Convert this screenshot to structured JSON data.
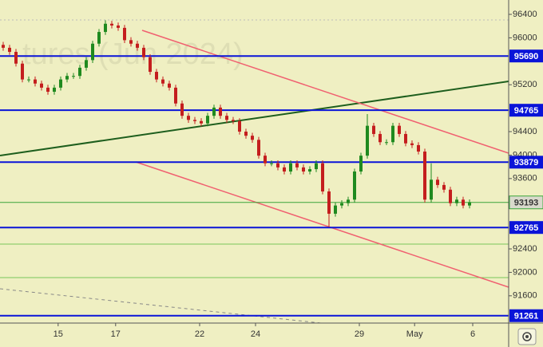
{
  "chart_data": {
    "type": "candlestick",
    "watermark": "tures (Jun 2024)",
    "open": [
      95880,
      95830,
      95760,
      95560,
      95290,
      95290,
      95220,
      95150,
      95080,
      95150,
      95290,
      95350,
      95350,
      95490,
      95620,
      95900,
      96100,
      96240,
      96210,
      96170,
      95960,
      95900,
      95830,
      95670,
      95420,
      95290,
      95220,
      95150,
      94880,
      94670,
      94600,
      94580,
      94540,
      94670,
      94810,
      94670,
      94600,
      94580,
      94400,
      94330,
      94260,
      93990,
      93860,
      93860,
      93790,
      93720,
      93860,
      93790,
      93720,
      93760,
      93860,
      93380,
      93000,
      93140,
      93180,
      93240,
      93720,
      93990,
      94500,
      94360,
      94220,
      94220,
      94500,
      94360,
      94200,
      94170,
      94060,
      93240,
      93580,
      93490,
      93410,
      93180,
      93240,
      93140
    ],
    "high": [
      95930,
      95880,
      95810,
      95610,
      95340,
      95340,
      95270,
      95200,
      95200,
      95340,
      95400,
      95400,
      95540,
      95670,
      95950,
      96150,
      96300,
      96290,
      96260,
      96220,
      96010,
      95950,
      95880,
      95720,
      95470,
      95340,
      95270,
      95200,
      94930,
      94720,
      94650,
      94630,
      94720,
      94860,
      94860,
      94720,
      94650,
      94630,
      94450,
      94380,
      94310,
      94040,
      93910,
      93910,
      93840,
      93910,
      93910,
      93840,
      93810,
      93910,
      93910,
      93430,
      93190,
      93230,
      93290,
      93770,
      94040,
      94700,
      94550,
      94410,
      94270,
      94550,
      94550,
      94410,
      94250,
      94220,
      94110,
      93860,
      93630,
      93540,
      93460,
      93290,
      93290,
      93243
    ],
    "low": [
      95780,
      95710,
      95510,
      95240,
      95240,
      95170,
      95100,
      95030,
      95030,
      95100,
      95240,
      95300,
      95300,
      95440,
      95570,
      95850,
      96050,
      96160,
      96120,
      95910,
      95850,
      95780,
      95620,
      95370,
      95240,
      95170,
      95100,
      94830,
      94620,
      94550,
      94530,
      94490,
      94490,
      94620,
      94620,
      94550,
      94530,
      94350,
      94280,
      94210,
      93940,
      93810,
      93810,
      93740,
      93670,
      93670,
      93740,
      93670,
      93670,
      93710,
      93330,
      92770,
      92950,
      93090,
      93130,
      93190,
      93670,
      93940,
      94310,
      94170,
      94170,
      94170,
      94310,
      94150,
      94120,
      94010,
      93190,
      93190,
      93440,
      93360,
      93130,
      93130,
      93090,
      93090
    ],
    "close": [
      95830,
      95760,
      95560,
      95290,
      95290,
      95220,
      95150,
      95080,
      95150,
      95290,
      95350,
      95350,
      95490,
      95620,
      95900,
      96100,
      96240,
      96210,
      96170,
      95960,
      95900,
      95830,
      95670,
      95420,
      95290,
      95220,
      95150,
      94880,
      94670,
      94600,
      94580,
      94540,
      94670,
      94810,
      94670,
      94600,
      94580,
      94400,
      94330,
      94260,
      93990,
      93860,
      93860,
      93790,
      93720,
      93860,
      93790,
      93720,
      93760,
      93860,
      93380,
      93000,
      93140,
      93180,
      93240,
      93720,
      93990,
      94500,
      94360,
      94220,
      94220,
      94500,
      94360,
      94200,
      94170,
      94060,
      93240,
      93580,
      93490,
      93410,
      93180,
      93240,
      93140,
      93193
    ],
    "up_color": "#1f8a1f",
    "down_color": "#c41e1e",
    "ylim": [
      91135,
      96645
    ],
    "yticks": [
      96400,
      96000,
      95200,
      94400,
      94000,
      93600,
      92400,
      92000,
      91600
    ],
    "xlim": [
      -0.5,
      79.125
    ],
    "xticks": [
      {
        "value": 8.6,
        "label": "15"
      },
      {
        "value": 17.6,
        "label": "17"
      },
      {
        "value": 30.75,
        "label": "22"
      },
      {
        "value": 39.5,
        "label": "24"
      },
      {
        "value": 55.75,
        "label": "29"
      },
      {
        "value": 64.4,
        "label": "May"
      },
      {
        "value": 73.5,
        "label": "6"
      }
    ],
    "levels": [
      {
        "value": 95690,
        "color": "#0a14d8"
      },
      {
        "value": 94765,
        "color": "#0a14d8"
      },
      {
        "value": 93879,
        "color": "#0a14d8"
      },
      {
        "value": 92765,
        "color": "#0a14d8"
      },
      {
        "value": 91261,
        "color": "#0a14d8"
      }
    ],
    "last_price_color": "#3aa63a"
  }
}
